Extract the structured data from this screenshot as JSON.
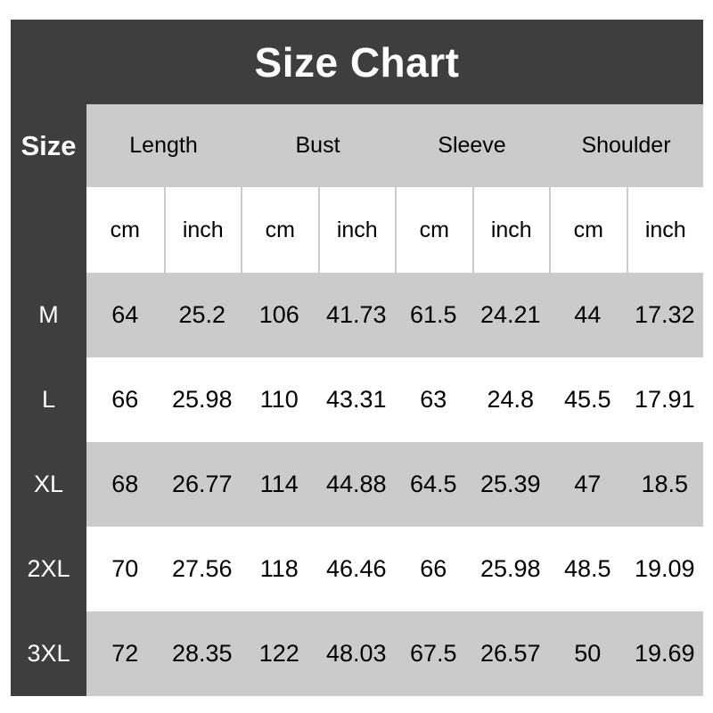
{
  "title": "Size Chart",
  "colors": {
    "dark": "#3e3e3e",
    "band_gray": "#cbcbcb",
    "row_white": "#ffffff",
    "separator": "#cccccc",
    "text_dark": "#000000",
    "text_light": "#ffffff"
  },
  "table": {
    "corner_label": "Size",
    "groups": [
      "Length",
      "Bust",
      "Sleeve",
      "Shoulder"
    ],
    "units": [
      "cm",
      "inch",
      "cm",
      "inch",
      "cm",
      "inch",
      "cm",
      "inch"
    ],
    "rows": [
      {
        "size": "M",
        "values": [
          "64",
          "25.2",
          "106",
          "41.73",
          "61.5",
          "24.21",
          "44",
          "17.32"
        ]
      },
      {
        "size": "L",
        "values": [
          "66",
          "25.98",
          "110",
          "43.31",
          "63",
          "24.8",
          "45.5",
          "17.91"
        ]
      },
      {
        "size": "XL",
        "values": [
          "68",
          "26.77",
          "114",
          "44.88",
          "64.5",
          "25.39",
          "47",
          "18.5"
        ]
      },
      {
        "size": "2XL",
        "values": [
          "70",
          "27.56",
          "118",
          "46.46",
          "66",
          "25.98",
          "48.5",
          "19.09"
        ]
      },
      {
        "size": "3XL",
        "values": [
          "72",
          "28.35",
          "122",
          "48.03",
          "67.5",
          "26.57",
          "50",
          "19.69"
        ]
      }
    ]
  },
  "chart_data": {
    "type": "table",
    "title": "Size Chart",
    "columns": [
      "Size",
      "Length (cm)",
      "Length (inch)",
      "Bust (cm)",
      "Bust (inch)",
      "Sleeve (cm)",
      "Sleeve (inch)",
      "Shoulder (cm)",
      "Shoulder (inch)"
    ],
    "rows": [
      [
        "M",
        64,
        25.2,
        106,
        41.73,
        61.5,
        24.21,
        44,
        17.32
      ],
      [
        "L",
        66,
        25.98,
        110,
        43.31,
        63,
        24.8,
        45.5,
        17.91
      ],
      [
        "XL",
        68,
        26.77,
        114,
        44.88,
        64.5,
        25.39,
        47,
        18.5
      ],
      [
        "2XL",
        70,
        27.56,
        118,
        46.46,
        66,
        25.98,
        48.5,
        19.09
      ],
      [
        "3XL",
        72,
        28.35,
        122,
        48.03,
        67.5,
        26.57,
        50,
        19.69
      ]
    ],
    "layout": {
      "header_background": "#3e3e3e",
      "alternating_row_colors": [
        "#cbcbcb",
        "#ffffff"
      ],
      "grid": "off",
      "unit_pairs_per_measure": true
    }
  }
}
